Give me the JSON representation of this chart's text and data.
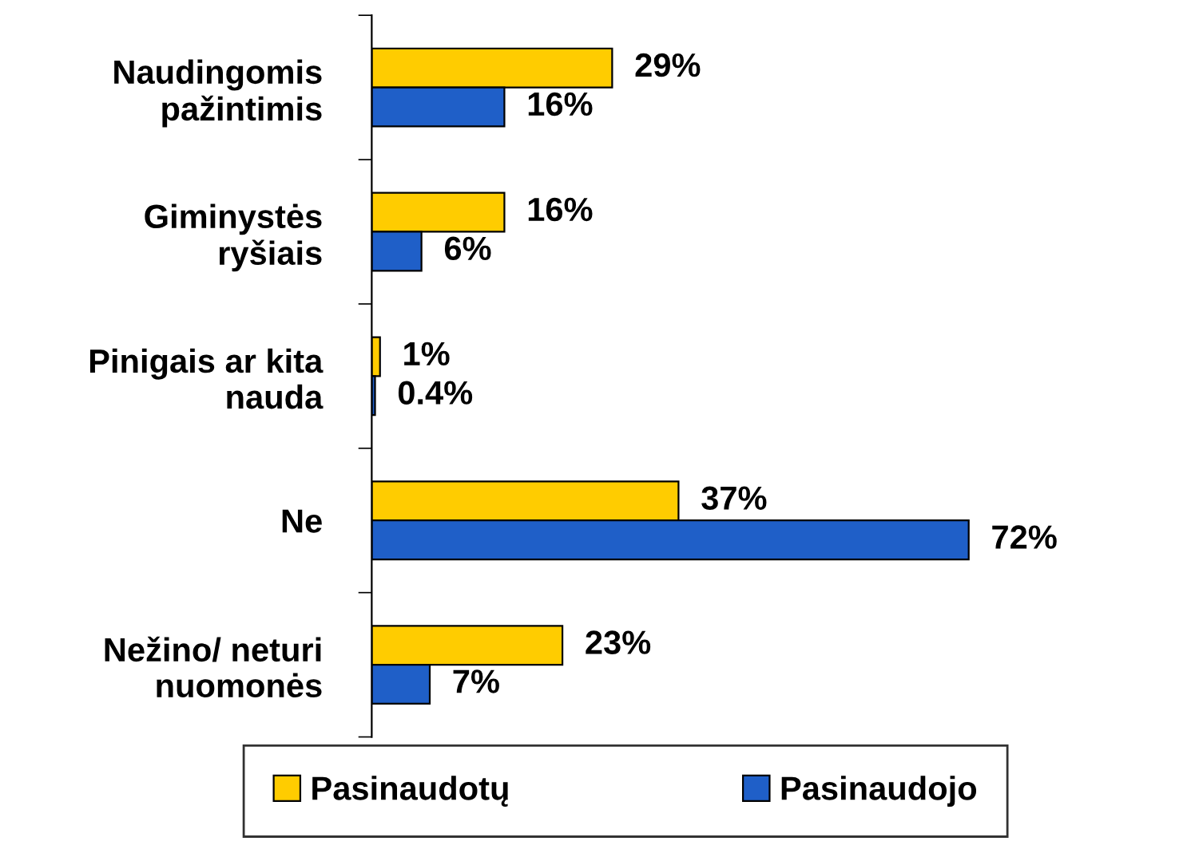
{
  "chart_data": {
    "type": "bar",
    "orientation": "horizontal",
    "categories": [
      "Naudingomis\npažintimis",
      "Giminystės\nryšiais",
      "Pinigais ar kita\nnauda",
      "Ne",
      "Nežino/ neturi\nnuomonės"
    ],
    "series": [
      {
        "name": "Pasinaudotų",
        "color": "#ffcc00",
        "values": [
          29,
          16,
          1,
          37,
          23
        ],
        "value_labels": [
          "29%",
          "16%",
          "1%",
          "37%",
          "23%"
        ]
      },
      {
        "name": "Pasinaudojo",
        "color": "#1f5fc8",
        "values": [
          16,
          6,
          0.4,
          72,
          7
        ],
        "value_labels": [
          "16%",
          "6%",
          "0.4%",
          "72%",
          "7%"
        ]
      }
    ],
    "legend": "bottom",
    "grid": false
  }
}
